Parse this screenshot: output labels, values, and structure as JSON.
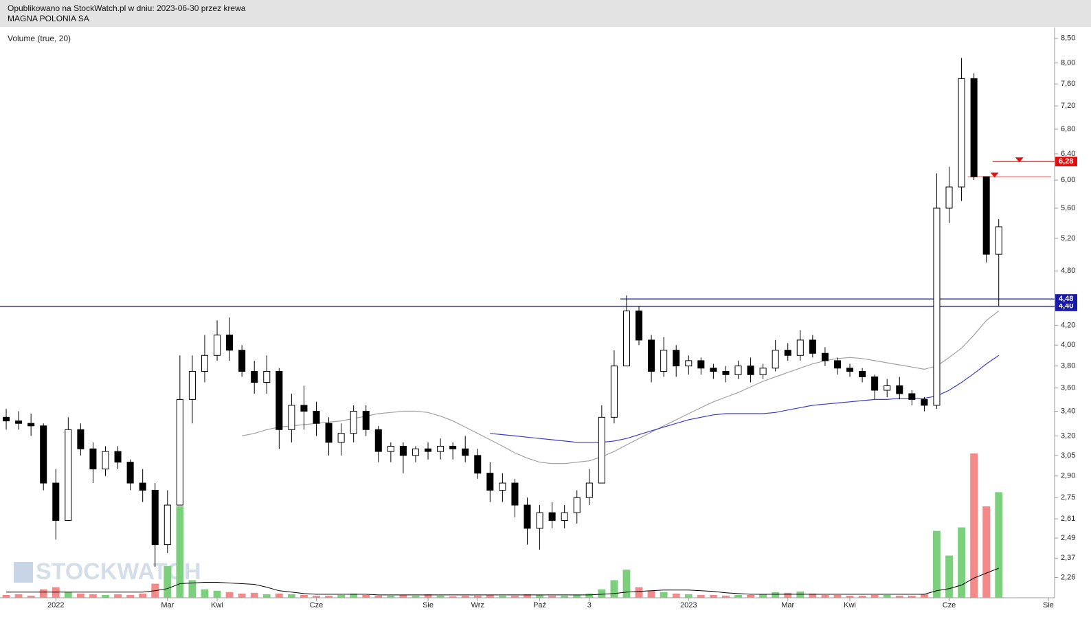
{
  "header": {
    "line1": "Opublikowano na StockWatch.pl w dniu: 2023-06-30 przez krewa",
    "line2": "MAGNA POLONIA SA"
  },
  "chart_data": {
    "type": "candlestick",
    "indicator_label": "Volume (true, 20)",
    "watermark": "STOCKWATCH",
    "categories": [
      null,
      null,
      null,
      null,
      "2022",
      null,
      null,
      null,
      null,
      null,
      null,
      null,
      null,
      "Mar",
      null,
      null,
      null,
      "Kwi",
      null,
      null,
      null,
      null,
      null,
      null,
      null,
      "Cze",
      null,
      null,
      null,
      null,
      null,
      null,
      null,
      null,
      "Sie",
      null,
      null,
      null,
      "Wrz",
      null,
      null,
      null,
      null,
      "Paź",
      null,
      null,
      null,
      "3",
      null,
      null,
      null,
      null,
      null,
      null,
      null,
      "2023",
      null,
      null,
      null,
      null,
      null,
      null,
      null,
      "Mar",
      null,
      null,
      null,
      null,
      "Kwi",
      null,
      null,
      null,
      null,
      null,
      null,
      null,
      "Cze",
      null,
      null,
      null,
      null,
      null,
      null,
      null,
      "Sie"
    ],
    "open": [
      3.35,
      3.32,
      3.3,
      3.28,
      2.85,
      2.6,
      3.25,
      3.1,
      2.95,
      3.08,
      3.0,
      2.85,
      2.8,
      2.45,
      2.7,
      3.5,
      3.75,
      3.9,
      4.1,
      3.95,
      3.75,
      3.65,
      3.75,
      3.25,
      3.45,
      3.4,
      3.3,
      3.15,
      3.22,
      3.4,
      3.25,
      3.08,
      3.12,
      3.05,
      3.1,
      3.08,
      3.12,
      3.1,
      3.05,
      2.92,
      2.8,
      2.85,
      2.7,
      2.55,
      2.65,
      2.6,
      2.65,
      2.75,
      2.85,
      3.35,
      3.8,
      4.35,
      4.05,
      3.75,
      3.95,
      3.8,
      3.85,
      3.78,
      3.75,
      3.72,
      3.8,
      3.72,
      3.78,
      3.95,
      3.9,
      4.05,
      3.92,
      3.85,
      3.78,
      3.75,
      3.7,
      3.58,
      3.62,
      3.55,
      3.5,
      3.45,
      5.6,
      5.9,
      7.7,
      6.05,
      5.0,
      null,
      null,
      null,
      null
    ],
    "high": [
      3.42,
      3.4,
      3.38,
      3.3,
      2.95,
      3.35,
      3.3,
      3.15,
      3.12,
      3.12,
      3.02,
      2.95,
      2.85,
      2.8,
      3.9,
      3.9,
      4.1,
      4.25,
      4.28,
      4.0,
      3.85,
      3.9,
      3.78,
      3.55,
      3.62,
      3.48,
      3.35,
      3.3,
      3.45,
      3.45,
      3.28,
      3.15,
      3.15,
      3.12,
      3.15,
      3.18,
      3.15,
      3.2,
      3.1,
      3.0,
      2.92,
      2.88,
      2.75,
      2.7,
      2.72,
      2.7,
      2.8,
      2.95,
      3.45,
      3.95,
      4.52,
      4.4,
      4.1,
      4.08,
      4.0,
      3.9,
      3.88,
      3.82,
      3.8,
      3.85,
      3.88,
      3.82,
      4.05,
      4.02,
      4.15,
      4.1,
      3.98,
      3.88,
      3.82,
      3.78,
      3.72,
      3.68,
      3.7,
      3.58,
      3.52,
      6.1,
      6.2,
      8.1,
      7.8,
      6.05,
      5.45,
      null,
      null,
      null,
      null
    ],
    "low": [
      3.25,
      3.25,
      3.2,
      2.8,
      2.48,
      2.6,
      3.05,
      2.85,
      2.9,
      2.95,
      2.8,
      2.72,
      2.32,
      2.4,
      2.7,
      3.3,
      3.65,
      3.85,
      3.85,
      3.7,
      3.55,
      3.55,
      3.1,
      3.15,
      3.25,
      3.2,
      3.05,
      3.05,
      3.15,
      3.2,
      3.0,
      3.0,
      2.92,
      3.0,
      3.02,
      3.02,
      3.02,
      3.0,
      2.88,
      2.72,
      2.72,
      2.62,
      2.45,
      2.42,
      2.55,
      2.55,
      2.58,
      2.7,
      2.85,
      3.3,
      3.8,
      4.0,
      3.65,
      3.7,
      3.7,
      3.72,
      3.72,
      3.68,
      3.65,
      3.68,
      3.65,
      3.68,
      3.75,
      3.85,
      3.85,
      3.88,
      3.8,
      3.72,
      3.7,
      3.65,
      3.5,
      3.52,
      3.5,
      3.45,
      3.4,
      3.42,
      5.4,
      5.7,
      6.0,
      4.9,
      4.4,
      null,
      null,
      null,
      null
    ],
    "close": [
      3.32,
      3.3,
      3.28,
      2.85,
      2.6,
      3.25,
      3.1,
      2.95,
      3.08,
      3.0,
      2.85,
      2.8,
      2.45,
      2.7,
      3.5,
      3.75,
      3.9,
      4.1,
      3.95,
      3.75,
      3.65,
      3.75,
      3.25,
      3.45,
      3.4,
      3.3,
      3.15,
      3.22,
      3.4,
      3.25,
      3.08,
      3.12,
      3.05,
      3.1,
      3.08,
      3.12,
      3.1,
      3.05,
      2.92,
      2.8,
      2.85,
      2.7,
      2.55,
      2.65,
      2.6,
      2.65,
      2.75,
      2.85,
      3.35,
      3.8,
      4.35,
      4.05,
      3.75,
      3.95,
      3.8,
      3.85,
      3.78,
      3.75,
      3.72,
      3.8,
      3.72,
      3.78,
      3.95,
      3.9,
      4.05,
      3.92,
      3.85,
      3.78,
      3.75,
      3.7,
      3.58,
      3.62,
      3.55,
      3.5,
      3.45,
      5.6,
      5.9,
      7.7,
      6.05,
      5.0,
      5.35,
      null,
      null,
      null,
      null
    ],
    "volume": [
      4,
      5,
      3,
      12,
      15,
      8,
      6,
      5,
      4,
      5,
      4,
      6,
      20,
      45,
      130,
      25,
      12,
      10,
      8,
      6,
      7,
      5,
      6,
      5,
      4,
      3,
      3,
      4,
      6,
      4,
      3,
      3,
      4,
      3,
      5,
      3,
      2,
      3,
      3,
      4,
      3,
      3,
      5,
      4,
      3,
      3,
      4,
      6,
      12,
      25,
      40,
      15,
      10,
      8,
      6,
      5,
      4,
      4,
      3,
      4,
      4,
      5,
      8,
      7,
      9,
      6,
      4,
      4,
      3,
      3,
      4,
      4,
      3,
      3,
      5,
      95,
      60,
      100,
      205,
      130,
      150,
      null,
      null,
      null,
      null
    ],
    "volume_ma": [
      8,
      8,
      8,
      8,
      8,
      8,
      8,
      8,
      8,
      8,
      8,
      8,
      10,
      13,
      20,
      21,
      22,
      22,
      21,
      20,
      19,
      15,
      10,
      8,
      6,
      5,
      5,
      5,
      5,
      5,
      4,
      4,
      4,
      4,
      4,
      4,
      4,
      4,
      4,
      4,
      4,
      4,
      4,
      4,
      4,
      4,
      4,
      4,
      5,
      6,
      8,
      9,
      10,
      11,
      11,
      11,
      10,
      9,
      7,
      6,
      5,
      5,
      5,
      5,
      5,
      5,
      5,
      5,
      5,
      5,
      5,
      5,
      5,
      5,
      5,
      10,
      13,
      18,
      28,
      35,
      42,
      null,
      null,
      null,
      null
    ],
    "moving_averages": [
      {
        "color": "#a0a0a0",
        "values": [
          null,
          null,
          null,
          null,
          null,
          null,
          null,
          null,
          null,
          null,
          null,
          null,
          null,
          null,
          null,
          null,
          null,
          null,
          null,
          3.2,
          3.22,
          3.25,
          3.27,
          3.28,
          3.29,
          3.3,
          3.31,
          3.32,
          3.34,
          3.36,
          3.38,
          3.39,
          3.4,
          3.4,
          3.39,
          3.36,
          3.32,
          3.27,
          3.22,
          3.17,
          3.12,
          3.07,
          3.03,
          3.0,
          2.99,
          2.99,
          3.0,
          3.01,
          3.04,
          3.08,
          3.13,
          3.18,
          3.23,
          3.28,
          3.33,
          3.38,
          3.43,
          3.48,
          3.52,
          3.56,
          3.61,
          3.66,
          3.7,
          3.74,
          3.78,
          3.82,
          3.85,
          3.87,
          3.88,
          3.87,
          3.85,
          3.83,
          3.81,
          3.79,
          3.77,
          3.8,
          3.88,
          3.97,
          4.1,
          4.25,
          4.35,
          null,
          null,
          null,
          null
        ]
      },
      {
        "color": "#3a3ad0",
        "values": [
          null,
          null,
          null,
          null,
          null,
          null,
          null,
          null,
          null,
          null,
          null,
          null,
          null,
          null,
          null,
          null,
          null,
          null,
          null,
          null,
          null,
          null,
          null,
          null,
          null,
          null,
          null,
          null,
          null,
          null,
          null,
          null,
          null,
          null,
          null,
          null,
          null,
          null,
          null,
          3.22,
          3.21,
          3.2,
          3.19,
          3.18,
          3.17,
          3.16,
          3.15,
          3.15,
          3.15,
          3.16,
          3.18,
          3.21,
          3.24,
          3.27,
          3.3,
          3.33,
          3.35,
          3.37,
          3.38,
          3.38,
          3.38,
          3.38,
          3.39,
          3.41,
          3.43,
          3.45,
          3.46,
          3.47,
          3.48,
          3.49,
          3.5,
          3.5,
          3.51,
          3.51,
          3.51,
          3.53,
          3.58,
          3.65,
          3.73,
          3.82,
          3.9,
          null,
          null,
          null,
          null
        ]
      }
    ],
    "levels": [
      {
        "value": 4.4,
        "label": "4,40",
        "color": "#1a1aa8",
        "from": 0
      },
      {
        "value": 4.48,
        "label": "4,48",
        "color": "#1a1aa8",
        "from": 50
      },
      {
        "value": 6.28,
        "label": "6,28",
        "color": "#e01010",
        "from": 80
      },
      {
        "value": 6.05,
        "color": "#f5a0a0",
        "from": 78
      }
    ],
    "ylim": [
      2.15,
      8.73
    ],
    "log_scale": true,
    "yticks": [
      {
        "value": 2.26,
        "label": "2,26"
      },
      {
        "value": 2.37,
        "label": "2,37"
      },
      {
        "value": 2.49,
        "label": "2,49"
      },
      {
        "value": 2.61,
        "label": "2,61"
      },
      {
        "value": 2.75,
        "label": "2,75"
      },
      {
        "value": 2.9,
        "label": "2,90"
      },
      {
        "value": 3.05,
        "label": "3,05"
      },
      {
        "value": 3.2,
        "label": "3,20"
      },
      {
        "value": 3.4,
        "label": "3,40"
      },
      {
        "value": 3.6,
        "label": "3,60"
      },
      {
        "value": 3.8,
        "label": "3,80"
      },
      {
        "value": 4.0,
        "label": "4,00"
      },
      {
        "value": 4.2,
        "label": "4,20"
      },
      {
        "value": 4.8,
        "label": "4,80"
      },
      {
        "value": 5.2,
        "label": "5,20"
      },
      {
        "value": 5.6,
        "label": "5,60"
      },
      {
        "value": 6.0,
        "label": "6,00"
      },
      {
        "value": 6.4,
        "label": "6,40"
      },
      {
        "value": 6.8,
        "label": "6,80"
      },
      {
        "value": 7.2,
        "label": "7,20"
      },
      {
        "value": 7.6,
        "label": "7,60"
      },
      {
        "value": 8.0,
        "label": "8,00"
      },
      {
        "value": 8.5,
        "label": "8,50"
      }
    ],
    "colors": {
      "up": "#ffffff",
      "down": "#000000",
      "volume_up": "#7ccf7c",
      "volume_down": "#f28a8a",
      "volume_ma": "#000000"
    }
  }
}
